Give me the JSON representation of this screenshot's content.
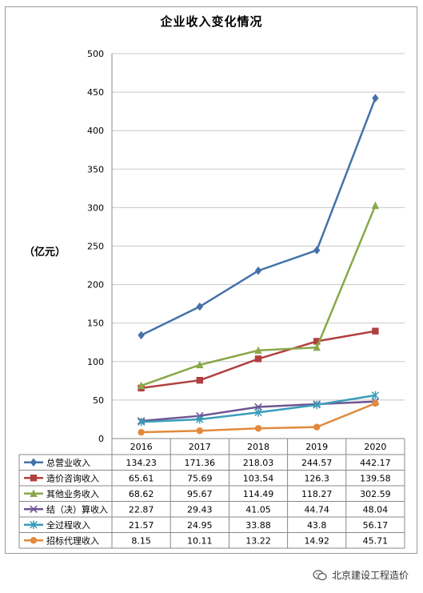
{
  "chart_data": {
    "type": "line",
    "title": "企业收入变化情况",
    "ylabel": "（亿元）",
    "ylim": [
      0,
      500
    ],
    "yticks": [
      0,
      50,
      100,
      150,
      200,
      250,
      300,
      350,
      400,
      450,
      500
    ],
    "categories": [
      "2016",
      "2017",
      "2018",
      "2019",
      "2020"
    ],
    "grid": true,
    "legend": "data-table-left",
    "series": [
      {
        "name": "总营业收入",
        "color": "#4472A8",
        "marker": "diamond",
        "values": [
          134.23,
          171.36,
          218.03,
          244.57,
          442.17
        ],
        "labels": [
          "134.23",
          "171.36",
          "218.03",
          "244.57",
          "442.17"
        ]
      },
      {
        "name": "造价咨询收入",
        "color": "#B0403F",
        "marker": "square",
        "values": [
          65.61,
          75.69,
          103.54,
          126.3,
          139.58
        ],
        "labels": [
          "65.61",
          "75.69",
          "103.54",
          "126.3",
          "139.58"
        ]
      },
      {
        "name": "其他业务收入",
        "color": "#8AA84A",
        "marker": "triangle",
        "values": [
          68.62,
          95.67,
          114.49,
          118.27,
          302.59
        ],
        "labels": [
          "68.62",
          "95.67",
          "114.49",
          "118.27",
          "302.59"
        ]
      },
      {
        "name": "结（决）算收入",
        "color": "#6E5592",
        "marker": "x",
        "values": [
          22.87,
          29.43,
          41.05,
          44.74,
          48.04
        ],
        "labels": [
          "22.87",
          "29.43",
          "41.05",
          "44.74",
          "48.04"
        ]
      },
      {
        "name": "全过程收入",
        "color": "#3A9DBA",
        "marker": "star",
        "values": [
          21.57,
          24.95,
          33.88,
          43.8,
          56.17
        ],
        "labels": [
          "21.57",
          "24.95",
          "33.88",
          "43.8",
          "56.17"
        ]
      },
      {
        "name": "招标代理收入",
        "color": "#E18A3C",
        "marker": "circle",
        "values": [
          8.15,
          10.11,
          13.22,
          14.92,
          45.71
        ],
        "labels": [
          "8.15",
          "10.11",
          "13.22",
          "14.92",
          "45.71"
        ]
      }
    ]
  },
  "watermark": {
    "text": "北京建设工程造价",
    "icon": "wechat-icon"
  }
}
